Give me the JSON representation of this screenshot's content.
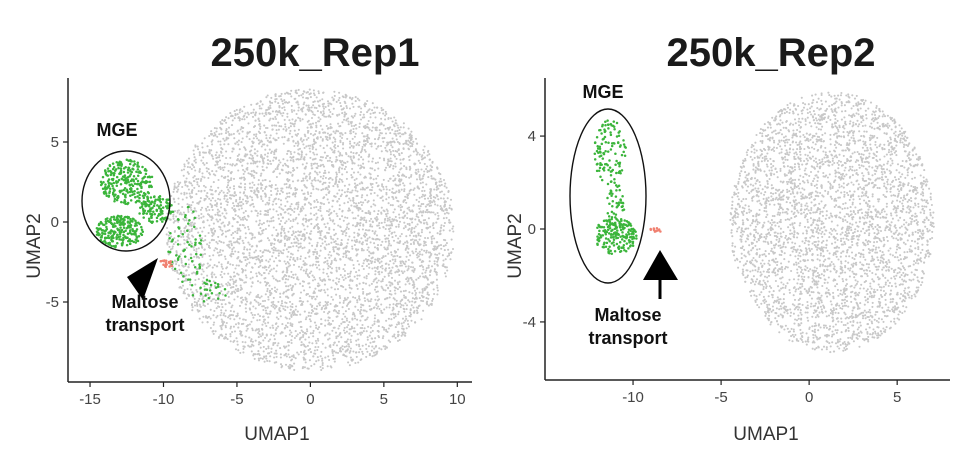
{
  "chart_data": [
    {
      "type": "scatter",
      "title": "250k_Rep1",
      "xlabel": "UMAP1",
      "ylabel": "UMAP2",
      "xlim": [
        -16.5,
        11
      ],
      "ylim": [
        -10,
        9
      ],
      "xticks": [
        "-15",
        "-10",
        "-5",
        "0",
        "5",
        "10"
      ],
      "yticks": [
        "5",
        "0",
        "-5"
      ],
      "xtick_values": [
        -15,
        -10,
        -5,
        0,
        5,
        10
      ],
      "ytick_values": [
        5,
        0,
        -5
      ],
      "grid": false,
      "series": [
        {
          "color": "#c8c8c8",
          "clusters": [
            {
              "cx": 0,
              "cy": -0.5,
              "rx": 9.8,
              "ry": 8.8,
              "n": 5000
            }
          ]
        },
        {
          "color": "#3bb53b",
          "clusters": [
            {
              "cx": -12.5,
              "cy": 2.5,
              "rx": 1.8,
              "ry": 1.4,
              "n": 260
            },
            {
              "cx": -13.0,
              "cy": -0.6,
              "rx": 1.6,
              "ry": 1.0,
              "n": 220
            },
            {
              "cx": -10.5,
              "cy": 0.8,
              "rx": 1.2,
              "ry": 0.9,
              "n": 120
            },
            {
              "cx": -8.5,
              "cy": -1.5,
              "rx": 1.2,
              "ry": 2.5,
              "n": 60
            },
            {
              "cx": -7.0,
              "cy": -4.3,
              "rx": 1.4,
              "ry": 0.7,
              "n": 25
            }
          ]
        },
        {
          "color": "#f08070",
          "clusters": [
            {
              "cx": -9.8,
              "cy": -2.6,
              "rx": 0.5,
              "ry": 0.25,
              "n": 18
            }
          ]
        }
      ],
      "annotations": [
        {
          "text": "MGE"
        },
        {
          "text": "Maltose",
          "line2": "transport"
        }
      ]
    },
    {
      "type": "scatter",
      "title": "250k_Rep2",
      "xlabel": "UMAP1",
      "ylabel": "UMAP2",
      "xlim": [
        -15,
        8
      ],
      "ylim": [
        -6.5,
        6.5
      ],
      "xticks": [
        "-10",
        "-5",
        "0",
        "5"
      ],
      "yticks": [
        "4",
        "0",
        "-4"
      ],
      "xtick_values": [
        -10,
        -5,
        0,
        5
      ],
      "ytick_values": [
        4,
        0,
        -4
      ],
      "grid": false,
      "series": [
        {
          "color": "#c8c8c8",
          "clusters": [
            {
              "cx": 1.3,
              "cy": 0.3,
              "rx": 5.8,
              "ry": 5.6,
              "n": 3500
            }
          ]
        },
        {
          "color": "#3bb53b",
          "clusters": [
            {
              "cx": -11.3,
              "cy": 3.3,
              "rx": 0.9,
              "ry": 1.4,
              "n": 110
            },
            {
              "cx": -11.0,
              "cy": 1.0,
              "rx": 0.5,
              "ry": 1.0,
              "n": 50
            },
            {
              "cx": -11.0,
              "cy": -0.3,
              "rx": 1.2,
              "ry": 0.8,
              "n": 180
            }
          ]
        },
        {
          "color": "#f08070",
          "clusters": [
            {
              "cx": -8.7,
              "cy": -0.05,
              "rx": 0.35,
              "ry": 0.1,
              "n": 12
            }
          ]
        }
      ],
      "annotations": [
        {
          "text": "MGE"
        },
        {
          "text": "Maltose",
          "line2": "transport"
        }
      ]
    }
  ]
}
